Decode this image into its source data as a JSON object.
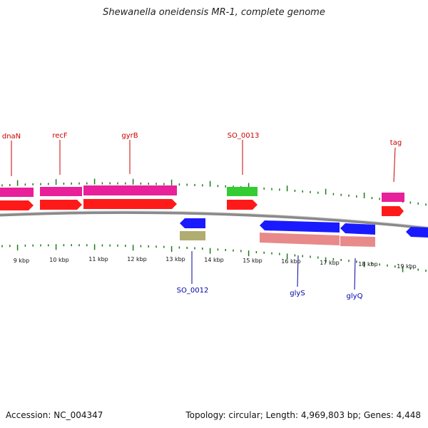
{
  "title": "Shewanella oneidensis MR-1, complete genome",
  "footer": {
    "accession": "Accession: NC_004347",
    "summary": "Topology: circular; Length: 4,969,803 bp; Genes: 4,448"
  },
  "colors": {
    "backbone": "#8a8a8a",
    "tick": "#1a7a1a",
    "forward_gene": "#ff1a1a",
    "forward_cds_pink": "#e8209a",
    "forward_rna_green": "#33cc33",
    "reverse_gene": "#1a1aff",
    "reverse_cds_pink": "#e88a8a",
    "reverse_other_olive": "#b0ad70",
    "forward_label": "#cc0000",
    "reverse_label": "#0000aa"
  },
  "scale": {
    "unit": "kbp",
    "labels": [
      "9 kbp",
      "10 kbp",
      "11 kbp",
      "12 kbp",
      "13 kbp",
      "14 kbp",
      "15 kbp",
      "16 kbp",
      "17 kbp",
      "18 kbp",
      "19 kbp"
    ]
  },
  "gene_labels": {
    "forward": [
      "dnaN",
      "recF",
      "gyrB",
      "SO_0013",
      "tag"
    ],
    "reverse": [
      "SO_0012",
      "glyS",
      "glyQ"
    ]
  }
}
